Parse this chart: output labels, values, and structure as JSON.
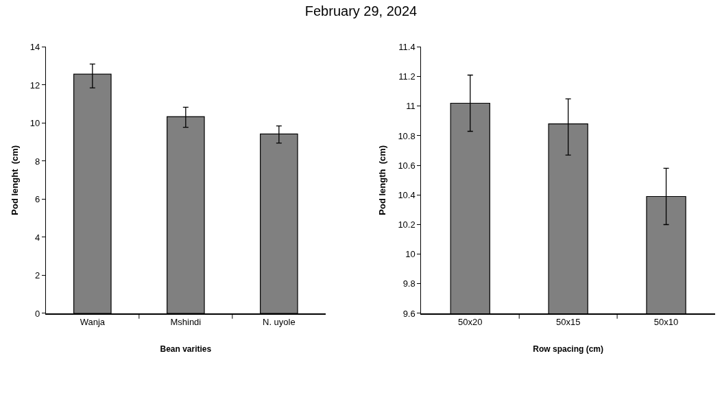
{
  "chart_data": [
    {
      "type": "bar",
      "title": "February 29, 2024",
      "xlabel": "Bean varities",
      "ylabel": "Pod lenght  (cm)",
      "categories": [
        "Wanja",
        "Mshindi",
        "N. uyole"
      ],
      "series": [
        {
          "color": "#808080",
          "values": [
            12.57,
            10.34,
            9.43
          ],
          "errors": [
            [
              11.85,
              13.1
            ],
            [
              9.78,
              10.83
            ],
            [
              8.95,
              9.85
            ]
          ]
        }
      ],
      "ylim": [
        0,
        14
      ],
      "yticks": [
        0,
        2,
        4,
        6,
        8,
        10,
        12,
        14
      ]
    },
    {
      "type": "bar",
      "xlabel": "Row spacing (cm)",
      "ylabel": "Pod length  (cm)",
      "categories": [
        "50x20",
        "50x15",
        "50x10"
      ],
      "series": [
        {
          "color": "#808080",
          "values": [
            11.02,
            10.88,
            10.39
          ],
          "errors": [
            [
              10.83,
              11.21
            ],
            [
              10.67,
              11.05
            ],
            [
              10.2,
              10.58
            ]
          ]
        }
      ],
      "ylim": [
        9.6,
        11.4
      ],
      "yticks": [
        9.6,
        9.8,
        10,
        10.2,
        10.4,
        10.6,
        10.8,
        11,
        11.2,
        11.4
      ]
    }
  ]
}
